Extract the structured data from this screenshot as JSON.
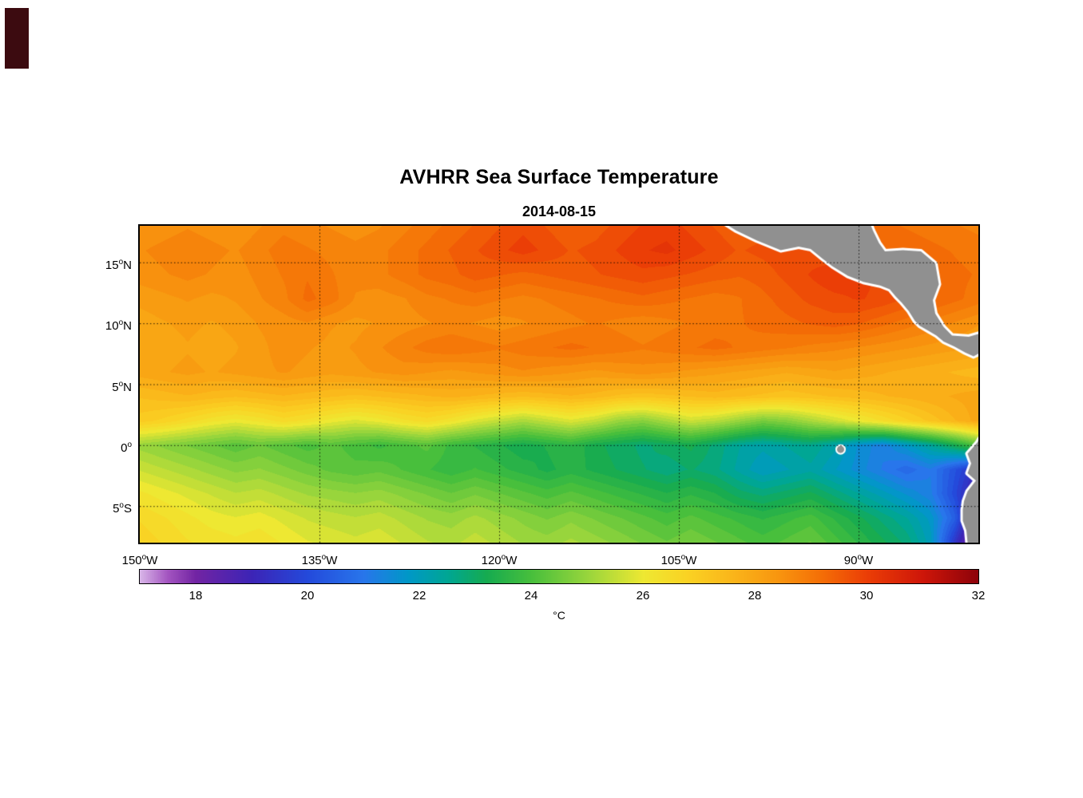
{
  "page": {
    "background": "#ffffff",
    "corner_artifact_color": "#3c0b10"
  },
  "chart_data": {
    "type": "heatmap",
    "title": "AVHRR Sea Surface Temperature",
    "subtitle": "2014-08-15",
    "extent": {
      "lon_min": -150,
      "lon_max": -80,
      "lat_min": -8,
      "lat_max": 18
    },
    "axes": {
      "y_ticks": [
        {
          "num": "15",
          "sup": "o",
          "suf": "N",
          "lat": 15
        },
        {
          "num": "10",
          "sup": "o",
          "suf": "N",
          "lat": 10
        },
        {
          "num": "5",
          "sup": "o",
          "suf": "N",
          "lat": 5
        },
        {
          "num": "0",
          "sup": "o",
          "suf": "",
          "lat": 0
        },
        {
          "num": "5",
          "sup": "o",
          "suf": "S",
          "lat": -5
        }
      ],
      "x_ticks": [
        {
          "num": "150",
          "sup": "o",
          "suf": "W",
          "lon": -150
        },
        {
          "num": "135",
          "sup": "o",
          "suf": "W",
          "lon": -135
        },
        {
          "num": "120",
          "sup": "o",
          "suf": "W",
          "lon": -120
        },
        {
          "num": "105",
          "sup": "o",
          "suf": "W",
          "lon": -105
        },
        {
          "num": "90",
          "sup": "o",
          "suf": "W",
          "lon": -90
        }
      ]
    },
    "grid": {
      "lons": [
        -135,
        -120,
        -105,
        -90
      ],
      "lats": [
        15,
        10,
        5,
        0,
        -5
      ],
      "style": "dotted"
    },
    "colors": {
      "land": "#909090",
      "coast": "#ffffff",
      "frame": "#000000",
      "gridline": "#000000"
    },
    "colormap": [
      [
        17,
        216,
        181,
        232
      ],
      [
        17.5,
        163,
        84,
        192
      ],
      [
        18,
        114,
        36,
        163
      ],
      [
        19,
        60,
        36,
        182
      ],
      [
        20,
        36,
        74,
        219
      ],
      [
        21,
        40,
        118,
        235
      ],
      [
        21.8,
        0,
        152,
        199
      ],
      [
        22.5,
        0,
        166,
        148
      ],
      [
        23.2,
        22,
        171,
        80
      ],
      [
        24,
        72,
        191,
        60
      ],
      [
        25,
        152,
        213,
        60
      ],
      [
        26,
        238,
        232,
        50
      ],
      [
        26.8,
        250,
        210,
        35
      ],
      [
        27.6,
        250,
        181,
        26
      ],
      [
        28.4,
        248,
        150,
        15
      ],
      [
        29.2,
        244,
        110,
        6
      ],
      [
        30,
        235,
        62,
        6
      ],
      [
        31,
        206,
        22,
        9
      ],
      [
        32,
        141,
        2,
        10
      ]
    ],
    "colorbar": {
      "min": 17,
      "max": 32,
      "tick_labels": [
        "18",
        "20",
        "22",
        "24",
        "26",
        "28",
        "30",
        "32"
      ],
      "tick_values": [
        18,
        20,
        22,
        24,
        26,
        28,
        30,
        32
      ],
      "unit": "°C"
    },
    "sst_grid": {
      "grid_lons": [
        -150,
        -148,
        -146,
        -144,
        -142,
        -140,
        -138,
        -136,
        -134,
        -132,
        -130,
        -128,
        -126,
        -124,
        -122,
        -120,
        -118,
        -116,
        -114,
        -112,
        -110,
        -108,
        -106,
        -104,
        -102,
        -100,
        -98,
        -96,
        -94,
        -92,
        -90,
        -88,
        -86,
        -84,
        -82,
        -80
      ],
      "grid_lats": [
        18,
        16,
        14,
        12,
        10,
        8,
        6,
        4,
        2,
        0,
        -2,
        -4,
        -6,
        -8
      ],
      "values_c": [
        [
          28.4,
          28.5,
          28.6,
          28.5,
          28.4,
          28.6,
          28.8,
          28.7,
          28.6,
          28.5,
          28.6,
          28.8,
          29.0,
          29.2,
          29.4,
          29.6,
          29.8,
          29.6,
          29.4,
          29.5,
          29.7,
          29.9,
          30.0,
          29.8,
          29.6,
          29.4,
          29.5,
          29.6,
          29.5,
          29.4,
          29.3,
          29.2,
          29.1,
          29.0,
          28.9,
          28.8
        ],
        [
          28.6,
          28.7,
          28.8,
          28.7,
          28.6,
          28.8,
          29.0,
          28.9,
          28.8,
          28.7,
          28.8,
          29.0,
          29.2,
          29.4,
          29.6,
          29.8,
          30.0,
          29.8,
          29.6,
          29.7,
          29.9,
          30.1,
          30.2,
          30.0,
          29.8,
          29.6,
          29.7,
          29.8,
          29.7,
          29.6,
          29.5,
          29.4,
          29.3,
          29.2,
          29.1,
          29.0
        ],
        [
          28.5,
          28.6,
          28.7,
          28.6,
          28.5,
          28.7,
          28.9,
          29.1,
          28.9,
          28.7,
          28.8,
          29.0,
          29.2,
          29.3,
          29.5,
          29.4,
          29.3,
          29.4,
          29.5,
          29.6,
          29.7,
          29.8,
          29.7,
          29.6,
          29.5,
          29.4,
          29.5,
          29.7,
          29.9,
          30.1,
          30.0,
          29.8,
          29.6,
          29.4,
          29.2,
          29.1
        ],
        [
          28.2,
          28.3,
          28.4,
          28.3,
          28.4,
          28.6,
          28.8,
          29.2,
          29.0,
          28.6,
          28.5,
          28.6,
          28.8,
          28.9,
          29.0,
          28.9,
          28.8,
          28.9,
          29.0,
          29.1,
          29.2,
          29.3,
          29.2,
          29.1,
          29.0,
          29.1,
          29.3,
          29.5,
          29.7,
          29.8,
          29.9,
          29.8,
          29.6,
          29.4,
          29.2,
          29.0
        ],
        [
          28.0,
          28.1,
          28.2,
          28.1,
          28.2,
          28.4,
          28.5,
          28.6,
          28.4,
          28.3,
          28.4,
          28.5,
          28.6,
          28.7,
          28.6,
          28.5,
          28.6,
          28.7,
          28.8,
          28.9,
          28.8,
          28.7,
          28.8,
          28.9,
          29.0,
          29.1,
          29.2,
          29.3,
          29.4,
          29.5,
          29.4,
          29.2,
          29.0,
          28.8,
          28.6,
          28.4
        ],
        [
          27.9,
          28.0,
          28.1,
          28.0,
          28.1,
          28.3,
          28.5,
          28.4,
          28.3,
          28.4,
          28.6,
          28.8,
          29.0,
          29.1,
          29.0,
          28.9,
          29.0,
          29.1,
          29.2,
          29.1,
          29.0,
          28.9,
          29.0,
          29.1,
          29.2,
          29.1,
          29.0,
          28.9,
          28.8,
          28.7,
          28.6,
          28.5,
          28.4,
          28.3,
          28.2,
          28.1
        ],
        [
          28.0,
          28.1,
          28.2,
          28.1,
          28.2,
          28.3,
          28.4,
          28.3,
          28.2,
          28.3,
          28.4,
          28.5,
          28.4,
          28.3,
          28.4,
          28.5,
          28.6,
          28.5,
          28.4,
          28.3,
          28.4,
          28.5,
          28.4,
          28.3,
          28.2,
          28.1,
          28.0,
          27.9,
          28.0,
          28.1,
          28.0,
          27.9,
          27.8,
          27.7,
          27.6,
          27.5
        ],
        [
          27.4,
          27.5,
          27.6,
          27.5,
          27.4,
          27.5,
          27.6,
          27.5,
          27.4,
          27.3,
          27.4,
          27.5,
          27.6,
          27.7,
          27.6,
          27.5,
          27.4,
          27.5,
          27.6,
          27.5,
          27.3,
          27.2,
          27.3,
          27.4,
          27.5,
          27.4,
          27.3,
          27.2,
          27.3,
          27.4,
          27.5,
          27.6,
          27.7,
          27.8,
          27.9,
          28.0
        ],
        [
          27.0,
          26.8,
          26.5,
          26.2,
          26.0,
          26.2,
          26.5,
          26.3,
          26.0,
          25.8,
          26.0,
          26.3,
          26.5,
          26.2,
          25.8,
          25.5,
          25.2,
          25.5,
          25.8,
          25.5,
          25.0,
          24.8,
          25.2,
          25.6,
          25.4,
          25.0,
          24.6,
          24.8,
          25.2,
          25.6,
          26.0,
          26.4,
          26.8,
          27.2,
          27.6,
          28.0
        ],
        [
          25.0,
          24.8,
          24.6,
          24.4,
          24.2,
          24.4,
          24.2,
          24.0,
          24.2,
          24.0,
          23.8,
          24.0,
          24.2,
          23.8,
          23.6,
          23.4,
          23.2,
          23.4,
          23.6,
          23.2,
          23.0,
          22.8,
          23.0,
          23.2,
          22.8,
          22.4,
          22.2,
          22.4,
          22.6,
          22.2,
          21.6,
          21.2,
          21.8,
          22.4,
          23.2,
          24.2
        ],
        [
          25.6,
          25.4,
          25.2,
          25.0,
          24.8,
          24.9,
          24.7,
          24.5,
          24.3,
          24.2,
          24.3,
          24.1,
          23.9,
          23.7,
          23.9,
          23.7,
          23.5,
          23.3,
          23.5,
          23.3,
          23.1,
          22.9,
          22.7,
          22.9,
          22.7,
          22.3,
          21.9,
          22.1,
          22.3,
          21.9,
          21.5,
          21.1,
          20.7,
          21.1,
          20.2,
          19.2
        ],
        [
          26.2,
          26.0,
          25.8,
          25.6,
          25.4,
          25.5,
          25.3,
          25.1,
          25.0,
          24.9,
          25.0,
          24.8,
          24.6,
          24.4,
          24.6,
          24.4,
          24.2,
          24.0,
          24.2,
          24.0,
          23.8,
          23.6,
          23.4,
          23.6,
          23.4,
          23.0,
          22.8,
          23.0,
          23.2,
          22.8,
          22.4,
          22.0,
          21.6,
          21.2,
          20.0,
          18.5
        ],
        [
          26.6,
          26.4,
          26.2,
          26.0,
          25.9,
          26.0,
          25.8,
          25.6,
          25.5,
          25.4,
          25.5,
          25.3,
          25.1,
          25.0,
          25.2,
          25.0,
          24.8,
          24.6,
          24.8,
          24.6,
          24.4,
          24.2,
          24.0,
          24.2,
          24.0,
          23.8,
          23.6,
          23.8,
          24.0,
          23.6,
          23.2,
          22.8,
          22.4,
          21.8,
          20.5,
          17.8
        ],
        [
          26.8,
          26.6,
          26.4,
          26.3,
          26.2,
          26.3,
          26.1,
          25.9,
          25.8,
          25.7,
          25.8,
          25.6,
          25.4,
          25.3,
          25.5,
          25.3,
          25.1,
          25.0,
          25.2,
          25.0,
          24.8,
          24.6,
          24.4,
          24.6,
          24.4,
          24.2,
          24.0,
          24.2,
          24.4,
          24.0,
          23.6,
          23.2,
          22.8,
          22.0,
          19.5,
          17.2
        ]
      ]
    },
    "land": {
      "polygons": [
        [
          [
            -101.8,
            18.6
          ],
          [
            -100.2,
            17.6
          ],
          [
            -98.5,
            16.8
          ],
          [
            -96.5,
            16.0
          ],
          [
            -95.0,
            16.3
          ],
          [
            -94.0,
            16.1
          ],
          [
            -93.0,
            15.3
          ],
          [
            -92.2,
            14.7
          ],
          [
            -90.9,
            13.9
          ],
          [
            -89.6,
            13.4
          ],
          [
            -88.2,
            13.1
          ],
          [
            -87.4,
            12.8
          ],
          [
            -86.9,
            12.2
          ],
          [
            -86.4,
            11.7
          ],
          [
            -85.8,
            11.0
          ],
          [
            -85.3,
            10.2
          ],
          [
            -84.9,
            9.8
          ],
          [
            -84.2,
            9.4
          ],
          [
            -83.5,
            9.0
          ],
          [
            -82.9,
            8.5
          ],
          [
            -82.0,
            8.1
          ],
          [
            -81.1,
            7.6
          ],
          [
            -80.4,
            7.3
          ],
          [
            -79.8,
            7.6
          ],
          [
            -79.2,
            7.3
          ],
          [
            -78.4,
            6.9
          ],
          [
            -77.8,
            7.2
          ],
          [
            -77.5,
            8.0
          ],
          [
            -78.2,
            9.0
          ],
          [
            -79.4,
            9.3
          ],
          [
            -80.8,
            8.9
          ],
          [
            -82.2,
            9.0
          ],
          [
            -82.9,
            9.7
          ],
          [
            -83.6,
            10.8
          ],
          [
            -83.8,
            11.9
          ],
          [
            -83.3,
            13.2
          ],
          [
            -83.6,
            14.9
          ],
          [
            -84.8,
            15.9
          ],
          [
            -86.3,
            16.0
          ],
          [
            -87.8,
            15.9
          ],
          [
            -88.3,
            16.6
          ],
          [
            -88.8,
            17.6
          ],
          [
            -89.2,
            18.6
          ],
          [
            -95.5,
            18.9
          ]
        ],
        [
          [
            -78.6,
            1.6
          ],
          [
            -79.6,
            1.0
          ],
          [
            -80.1,
            0.2
          ],
          [
            -80.9,
            -0.7
          ],
          [
            -80.6,
            -1.5
          ],
          [
            -80.9,
            -2.3
          ],
          [
            -80.2,
            -2.9
          ],
          [
            -80.9,
            -3.8
          ],
          [
            -81.2,
            -4.6
          ],
          [
            -81.3,
            -5.3
          ],
          [
            -81.3,
            -6.2
          ],
          [
            -81.0,
            -7.0
          ],
          [
            -80.9,
            -8.0
          ],
          [
            -80.8,
            -8.6
          ],
          [
            -76.0,
            -8.6
          ],
          [
            -76.0,
            1.6
          ]
        ]
      ],
      "galapagos": {
        "lon": -91.5,
        "lat": -0.35
      }
    }
  }
}
